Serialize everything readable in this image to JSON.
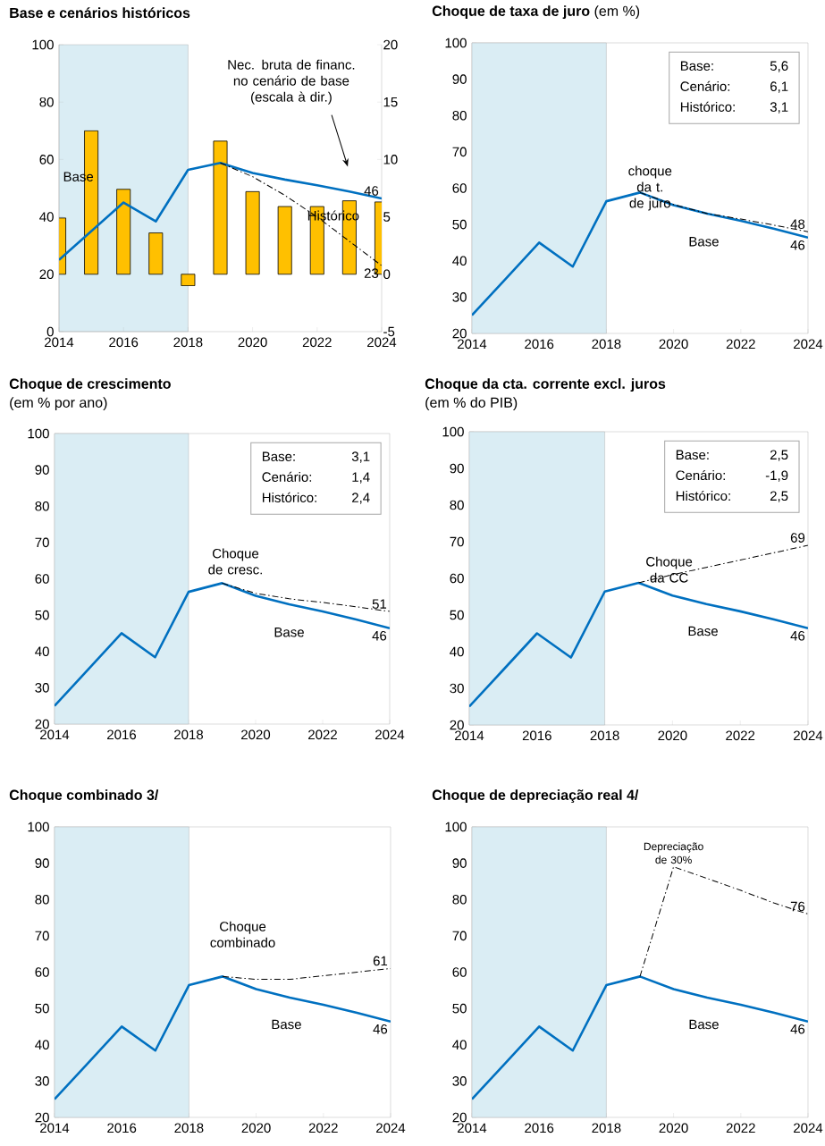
{
  "chart_data": [
    {
      "type": "line",
      "title": "Base e cenários históricos",
      "xlim": [
        2014,
        2024
      ],
      "xticks": [
        2014,
        2016,
        2018,
        2020,
        2022,
        2024
      ],
      "ylim": [
        0,
        100
      ],
      "yticks": [
        0,
        20,
        40,
        60,
        80,
        100
      ],
      "y2lim": [
        -5,
        20
      ],
      "y2ticks": [
        -5,
        0,
        5,
        10,
        15,
        20
      ],
      "bands": [
        {
          "axis": "x",
          "from": 2014,
          "to": 2018,
          "color": "#daedf4"
        }
      ],
      "series": [
        {
          "type": "bar",
          "axis": "y2",
          "color": "#ffc000",
          "x": [
            2014,
            2015,
            2016,
            2017,
            2018,
            2019,
            2020,
            2021,
            2022,
            2023,
            2024
          ],
          "values": [
            4.9,
            12.5,
            7.4,
            3.6,
            -1,
            11.6,
            7.2,
            5.9,
            5.9,
            6.4,
            6.3
          ]
        },
        {
          "color": "#0070c0",
          "x": [
            2014,
            2015,
            2016,
            2017,
            2018,
            2019,
            2020,
            2021,
            2022,
            2023,
            2024
          ],
          "values": [
            25,
            35,
            45,
            38.4,
            56.4,
            58.8,
            55.3,
            53,
            51,
            48.8,
            46.4
          ],
          "value_labels": [
            null,
            null,
            null,
            null,
            null,
            null,
            null,
            null,
            null,
            null,
            "46"
          ]
        },
        {
          "color": "#000000",
          "line_style": "dashed",
          "x": [
            2019,
            2020,
            2021,
            2022,
            2023,
            2024
          ],
          "values": [
            58.8,
            54,
            47.5,
            40,
            31.5,
            23
          ],
          "value_labels": [
            null,
            null,
            null,
            null,
            null,
            "23"
          ]
        }
      ],
      "annotations": [
        "Nec. bruta de financ. no cenário de base (escala à dir.)",
        "Base",
        "Histórico"
      ]
    },
    {
      "type": "line",
      "title": "Choque de taxa de juro",
      "subtitle": "(em %)",
      "xlim": [
        2014,
        2024
      ],
      "xticks": [
        2014,
        2016,
        2018,
        2020,
        2022,
        2024
      ],
      "ylim": [
        20,
        100
      ],
      "yticks": [
        20,
        30,
        40,
        50,
        60,
        70,
        80,
        90,
        100
      ],
      "bands": [
        {
          "axis": "x",
          "from": 2014,
          "to": 2018,
          "color": "#daedf4"
        }
      ],
      "series": [
        {
          "color": "#0070c0",
          "x": [
            2014,
            2015,
            2016,
            2017,
            2018,
            2019,
            2020,
            2021,
            2022,
            2023,
            2024
          ],
          "values": [
            25,
            35,
            45,
            38.4,
            56.4,
            58.8,
            55.3,
            53,
            51,
            48.8,
            46.4
          ],
          "value_labels": [
            null,
            null,
            null,
            null,
            null,
            null,
            null,
            null,
            null,
            null,
            "46"
          ]
        },
        {
          "color": "#000000",
          "line_style": "dashed",
          "x": [
            2019,
            2020,
            2021,
            2022,
            2023,
            2024
          ],
          "values": [
            58.8,
            55.5,
            53,
            51.5,
            49.8,
            48
          ],
          "value_labels": [
            null,
            null,
            null,
            null,
            null,
            "48"
          ]
        }
      ],
      "annotations": [
        "Base:",
        "5,6",
        "Cenário:",
        "6,1",
        "Histórico:",
        "3,1",
        "choque da t. de juro",
        "Base"
      ]
    },
    {
      "type": "line",
      "title": "Choque de crescimento",
      "subtitle": "(em % por ano)",
      "xlim": [
        2014,
        2024
      ],
      "xticks": [
        2014,
        2016,
        2018,
        2020,
        2022,
        2024
      ],
      "ylim": [
        20,
        100
      ],
      "yticks": [
        20,
        30,
        40,
        50,
        60,
        70,
        80,
        90,
        100
      ],
      "bands": [
        {
          "axis": "x",
          "from": 2014,
          "to": 2018,
          "color": "#daedf4"
        }
      ],
      "series": [
        {
          "color": "#0070c0",
          "x": [
            2014,
            2015,
            2016,
            2017,
            2018,
            2019,
            2020,
            2021,
            2022,
            2023,
            2024
          ],
          "values": [
            25,
            35,
            45,
            38.4,
            56.4,
            58.8,
            55.3,
            53,
            51,
            48.8,
            46.4
          ],
          "value_labels": [
            null,
            null,
            null,
            null,
            null,
            null,
            null,
            null,
            null,
            null,
            "46"
          ]
        },
        {
          "color": "#000000",
          "line_style": "dashed",
          "x": [
            2019,
            2020,
            2021,
            2022,
            2023,
            2024
          ],
          "values": [
            58.8,
            56,
            54.5,
            53.5,
            52.3,
            51
          ],
          "value_labels": [
            null,
            null,
            null,
            null,
            null,
            "51"
          ]
        }
      ],
      "annotations": [
        "Base:",
        "3,1",
        "Cenário:",
        "1,4",
        "Histórico:",
        "2,4",
        "Choque de cresc.",
        "Base"
      ]
    },
    {
      "type": "line",
      "title": "Choque da cta. corrente excl. juros",
      "subtitle": "(em % do PIB)",
      "xlim": [
        2014,
        2024
      ],
      "xticks": [
        2014,
        2016,
        2018,
        2020,
        2022,
        2024
      ],
      "ylim": [
        20,
        100
      ],
      "yticks": [
        20,
        30,
        40,
        50,
        60,
        70,
        80,
        90,
        100
      ],
      "bands": [
        {
          "axis": "x",
          "from": 2014,
          "to": 2018,
          "color": "#daedf4"
        }
      ],
      "series": [
        {
          "color": "#0070c0",
          "x": [
            2014,
            2015,
            2016,
            2017,
            2018,
            2019,
            2020,
            2021,
            2022,
            2023,
            2024
          ],
          "values": [
            25,
            35,
            45,
            38.4,
            56.4,
            58.8,
            55.3,
            53,
            51,
            48.8,
            46.4
          ],
          "value_labels": [
            null,
            null,
            null,
            null,
            null,
            null,
            null,
            null,
            null,
            null,
            "46"
          ]
        },
        {
          "color": "#000000",
          "line_style": "dashed",
          "x": [
            2019,
            2020,
            2021,
            2022,
            2023,
            2024
          ],
          "values": [
            58.8,
            61,
            63,
            65,
            67,
            69
          ],
          "value_labels": [
            null,
            null,
            null,
            null,
            null,
            "69"
          ]
        }
      ],
      "annotations": [
        "Base:",
        "2,5",
        "Cenário:",
        "-1,9",
        "Histórico:",
        "2,5",
        "Choque da CC",
        "Base"
      ]
    },
    {
      "type": "line",
      "title": "Choque combinado  3/",
      "xlim": [
        2014,
        2024
      ],
      "xticks": [
        2014,
        2016,
        2018,
        2020,
        2022,
        2024
      ],
      "ylim": [
        20,
        100
      ],
      "yticks": [
        20,
        30,
        40,
        50,
        60,
        70,
        80,
        90,
        100
      ],
      "bands": [
        {
          "axis": "x",
          "from": 2014,
          "to": 2018,
          "color": "#daedf4"
        }
      ],
      "series": [
        {
          "color": "#0070c0",
          "x": [
            2014,
            2015,
            2016,
            2017,
            2018,
            2019,
            2020,
            2021,
            2022,
            2023,
            2024
          ],
          "values": [
            25,
            35,
            45,
            38.4,
            56.4,
            58.8,
            55.3,
            53,
            51,
            48.8,
            46.4
          ],
          "value_labels": [
            null,
            null,
            null,
            null,
            null,
            null,
            null,
            null,
            null,
            null,
            "46"
          ]
        },
        {
          "color": "#000000",
          "line_style": "dashed",
          "x": [
            2019,
            2020,
            2021,
            2022,
            2023,
            2024
          ],
          "values": [
            58.8,
            58,
            58,
            59,
            60,
            61
          ],
          "value_labels": [
            null,
            null,
            null,
            null,
            null,
            "61"
          ]
        }
      ],
      "annotations": [
        "Choque combinado",
        "Base"
      ]
    },
    {
      "type": "line",
      "title": "Choque de depreciação real  4/",
      "xlim": [
        2014,
        2024
      ],
      "xticks": [
        2014,
        2016,
        2018,
        2020,
        2022,
        2024
      ],
      "ylim": [
        20,
        100
      ],
      "yticks": [
        20,
        30,
        40,
        50,
        60,
        70,
        80,
        90,
        100
      ],
      "bands": [
        {
          "axis": "x",
          "from": 2014,
          "to": 2018,
          "color": "#daedf4"
        }
      ],
      "series": [
        {
          "color": "#0070c0",
          "x": [
            2014,
            2015,
            2016,
            2017,
            2018,
            2019,
            2020,
            2021,
            2022,
            2023,
            2024
          ],
          "values": [
            25,
            35,
            45,
            38.4,
            56.4,
            58.8,
            55.3,
            53,
            51,
            48.8,
            46.4
          ],
          "value_labels": [
            null,
            null,
            null,
            null,
            null,
            null,
            null,
            null,
            null,
            null,
            "46"
          ]
        },
        {
          "color": "#000000",
          "line_style": "dashed",
          "x": [
            2019,
            2020,
            2021,
            2022,
            2023,
            2024
          ],
          "values": [
            58.8,
            89,
            85.8,
            82.5,
            79,
            76
          ],
          "value_labels": [
            null,
            null,
            null,
            null,
            null,
            "76"
          ]
        }
      ],
      "annotations": [
        "Depreciação de 30%",
        "Base"
      ]
    }
  ]
}
